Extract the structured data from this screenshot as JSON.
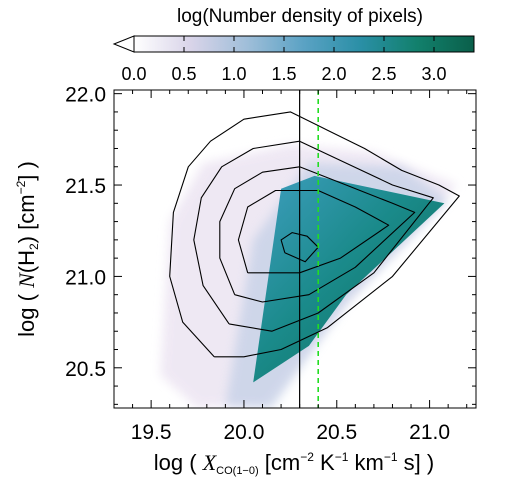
{
  "chart_data": {
    "type": "heatmap",
    "colorbar": {
      "title": "log(Number density of pixels)",
      "ticks": [
        "0.0",
        "0.5",
        "1.0",
        "1.5",
        "2.0",
        "2.5",
        "3.0"
      ],
      "range": [
        0.0,
        3.4
      ],
      "colors": [
        "#ffffff",
        "#d9d4e9",
        "#9fbed9",
        "#5aa2c4",
        "#2a8fa6",
        "#12806c",
        "#0a5f4a"
      ],
      "extend": "min"
    },
    "xlabel": {
      "pre": "log ( ",
      "var": "X",
      "sub": "CO(1−0)",
      "unit": " [cm",
      "e1": "−2",
      "k": " K",
      "e2": "−1",
      "km": " km",
      "e3": "−1",
      "end": " s] )"
    },
    "ylabel": {
      "pre": "log ( ",
      "var": "N",
      "h": "(H",
      "sub": "2",
      "unit": ") [cm",
      "exp": "−2",
      "end": "] )"
    },
    "xlim": [
      19.3,
      21.25
    ],
    "ylim": [
      20.28,
      22.02
    ],
    "xticks": [
      {
        "value": 19.5,
        "label": "19.5"
      },
      {
        "value": 20.0,
        "label": "20.0"
      },
      {
        "value": 20.5,
        "label": "20.5"
      },
      {
        "value": 21.0,
        "label": "21.0"
      }
    ],
    "yticks": [
      {
        "value": 20.5,
        "label": "20.5"
      },
      {
        "value": 21.0,
        "label": "21.0"
      },
      {
        "value": 21.5,
        "label": "21.5"
      },
      {
        "value": 22.0,
        "label": "22.0"
      }
    ],
    "reference_lines": [
      {
        "x": 20.3,
        "style": "solid",
        "color": "#000000"
      },
      {
        "x": 20.4,
        "style": "dashed",
        "color": "#22dd22"
      }
    ],
    "density_core": [
      [
        20.05,
        20.42
      ],
      [
        20.2,
        21.48
      ],
      [
        20.38,
        21.55
      ],
      [
        21.08,
        21.4
      ],
      [
        20.55,
        20.9
      ],
      [
        20.35,
        20.62
      ]
    ],
    "density_wings": [
      [
        [
          19.55,
          20.46
        ],
        [
          19.6,
          21.3
        ],
        [
          19.78,
          21.62
        ],
        [
          20.25,
          21.72
        ],
        [
          20.7,
          21.68
        ],
        [
          21.15,
          21.5
        ],
        [
          20.6,
          20.92
        ],
        [
          20.1,
          20.3
        ],
        [
          19.75,
          20.28
        ]
      ],
      [
        [
          19.9,
          20.29
        ],
        [
          20.05,
          21.2
        ],
        [
          20.35,
          21.62
        ],
        [
          20.85,
          21.6
        ],
        [
          21.1,
          21.42
        ],
        [
          20.55,
          20.85
        ],
        [
          20.15,
          20.28
        ]
      ]
    ],
    "contours": [
      [
        [
          19.84,
          20.56
        ],
        [
          19.67,
          20.75
        ],
        [
          19.6,
          21.0
        ],
        [
          19.62,
          21.35
        ],
        [
          19.7,
          21.6
        ],
        [
          19.82,
          21.74
        ],
        [
          20.0,
          21.86
        ],
        [
          20.25,
          21.9
        ],
        [
          20.45,
          21.8
        ],
        [
          20.65,
          21.7
        ],
        [
          20.85,
          21.58
        ],
        [
          21.05,
          21.5
        ],
        [
          21.16,
          21.44
        ],
        [
          20.8,
          21.0
        ],
        [
          20.45,
          20.72
        ],
        [
          20.2,
          20.6
        ],
        [
          20.0,
          20.56
        ],
        [
          19.84,
          20.56
        ]
      ],
      [
        [
          19.92,
          20.74
        ],
        [
          19.78,
          20.95
        ],
        [
          19.73,
          21.2
        ],
        [
          19.77,
          21.43
        ],
        [
          19.88,
          21.6
        ],
        [
          20.05,
          21.7
        ],
        [
          20.3,
          21.74
        ],
        [
          20.55,
          21.62
        ],
        [
          20.8,
          21.5
        ],
        [
          21.02,
          21.43
        ],
        [
          20.7,
          21.02
        ],
        [
          20.4,
          20.8
        ],
        [
          20.15,
          20.7
        ],
        [
          19.92,
          20.74
        ]
      ],
      [
        [
          19.95,
          20.9
        ],
        [
          19.87,
          21.1
        ],
        [
          19.87,
          21.3
        ],
        [
          19.95,
          21.48
        ],
        [
          20.1,
          21.57
        ],
        [
          20.3,
          21.6
        ],
        [
          20.55,
          21.5
        ],
        [
          20.8,
          21.4
        ],
        [
          20.92,
          21.35
        ],
        [
          20.6,
          21.05
        ],
        [
          20.35,
          20.9
        ],
        [
          20.1,
          20.86
        ],
        [
          19.95,
          20.9
        ]
      ],
      [
        [
          20.02,
          21.02
        ],
        [
          19.97,
          21.2
        ],
        [
          20.02,
          21.38
        ],
        [
          20.17,
          21.47
        ],
        [
          20.4,
          21.47
        ],
        [
          20.6,
          21.38
        ],
        [
          20.78,
          21.28
        ],
        [
          20.52,
          21.1
        ],
        [
          20.3,
          21.02
        ],
        [
          20.02,
          21.02
        ]
      ],
      [
        [
          20.22,
          21.13
        ],
        [
          20.2,
          21.2
        ],
        [
          20.26,
          21.24
        ],
        [
          20.34,
          21.22
        ],
        [
          20.4,
          21.16
        ],
        [
          20.33,
          21.08
        ],
        [
          20.22,
          21.13
        ]
      ]
    ]
  }
}
